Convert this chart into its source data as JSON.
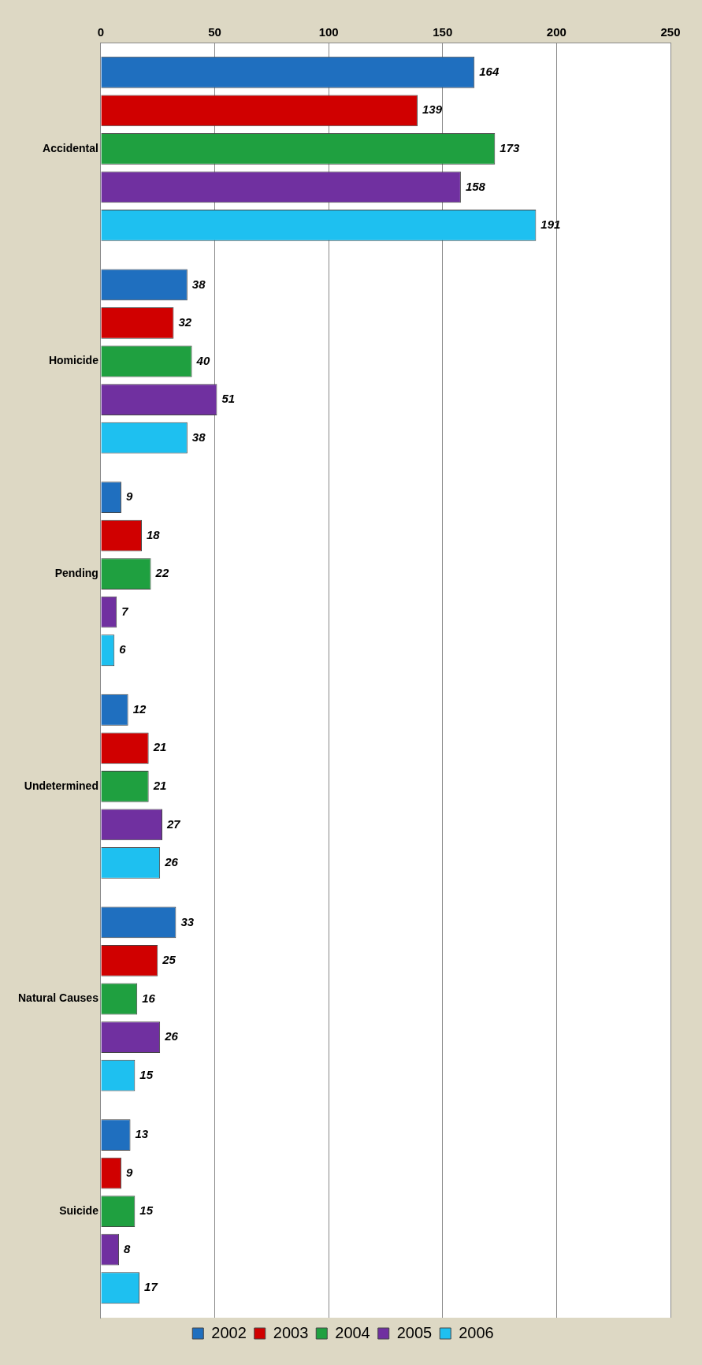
{
  "chart_data": {
    "type": "bar",
    "orientation": "horizontal",
    "categories": [
      "Accidental",
      "Homicide",
      "Pending",
      "Undetermined",
      "Natural Causes",
      "Suicide"
    ],
    "series": [
      {
        "name": "2002",
        "color": "#1f6fbf",
        "values": [
          164,
          38,
          9,
          12,
          33,
          13
        ]
      },
      {
        "name": "2003",
        "color": "#d00000",
        "values": [
          139,
          32,
          18,
          21,
          25,
          9
        ]
      },
      {
        "name": "2004",
        "color": "#1fa040",
        "values": [
          173,
          40,
          22,
          21,
          16,
          15
        ]
      },
      {
        "name": "2005",
        "color": "#7030a0",
        "values": [
          158,
          51,
          7,
          27,
          26,
          8
        ]
      },
      {
        "name": "2006",
        "color": "#1ec0f0",
        "values": [
          191,
          38,
          6,
          26,
          15,
          17
        ]
      }
    ],
    "xlim": [
      0,
      250
    ],
    "xticks": [
      0,
      50,
      100,
      150,
      200,
      250
    ],
    "grid": "x",
    "legend": "bottom",
    "data_labels": true
  }
}
